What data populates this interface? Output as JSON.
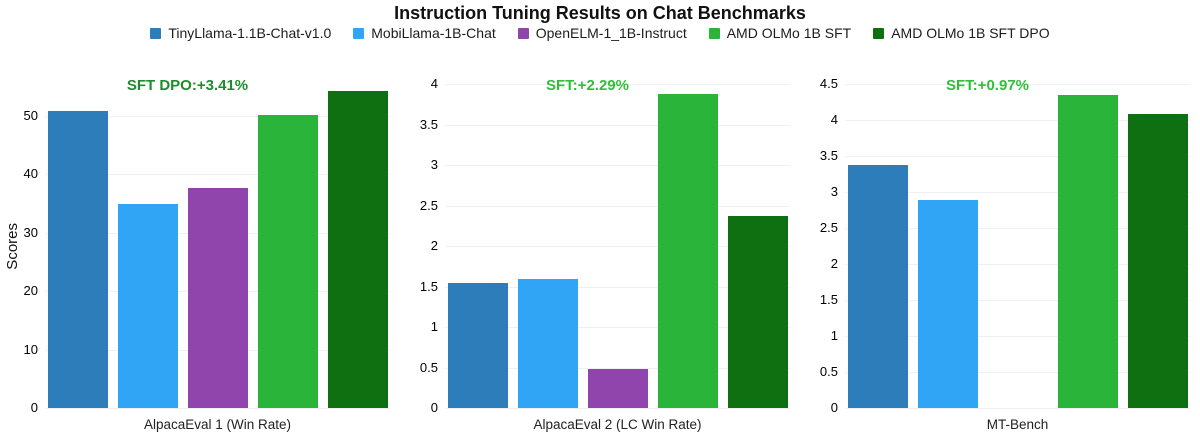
{
  "chart_data": {
    "type": "bar",
    "title": "Instruction Tuning Results on Chat Benchmarks",
    "grid": true,
    "legend_position": "top",
    "models": [
      {
        "name": "TinyLlama-1.1B-Chat-v1.0",
        "color": "#2d7dbb"
      },
      {
        "name": "MobiLlama-1B-Chat",
        "color": "#31a5f5"
      },
      {
        "name": "OpenELM-1_1B-Instruct",
        "color": "#9045ad"
      },
      {
        "name": "AMD OLMo 1B SFT",
        "color": "#2ab43a"
      },
      {
        "name": "AMD OLMo 1B SFT DPO",
        "color": "#0f7011"
      }
    ],
    "subplots": [
      {
        "xlabel": "AlpacaEval 1 (Win Rate)",
        "ylabel": "Scores",
        "ylim": [
          0,
          55.5
        ],
        "yticks": [
          0,
          10,
          20,
          30,
          40,
          50
        ],
        "annotation": {
          "text": "SFT DPO:+3.41%",
          "color": "#1e8c2d"
        },
        "values": [
          50.81,
          34.88,
          37.72,
          50.12,
          54.22
        ]
      },
      {
        "xlabel": "AlpacaEval 2 (LC Win Rate)",
        "ylabel": "",
        "ylim": [
          0,
          4
        ],
        "yticks": [
          0,
          0.5,
          1,
          1.5,
          2,
          2.5,
          3,
          3.5,
          4
        ],
        "annotation": {
          "text": "SFT:+2.29%",
          "color": "#32be3c"
        },
        "values": [
          1.54,
          1.59,
          0.48,
          3.88,
          2.37
        ]
      },
      {
        "xlabel": "MT-Bench",
        "ylabel": "",
        "ylim": [
          0,
          4.5
        ],
        "yticks": [
          0,
          0.5,
          1,
          1.5,
          2,
          2.5,
          3,
          3.5,
          4,
          4.5
        ],
        "annotation": {
          "text": "SFT:+0.97%",
          "color": "#32be3c"
        },
        "values": [
          3.38,
          2.89,
          null,
          4.35,
          4.09
        ]
      }
    ]
  }
}
